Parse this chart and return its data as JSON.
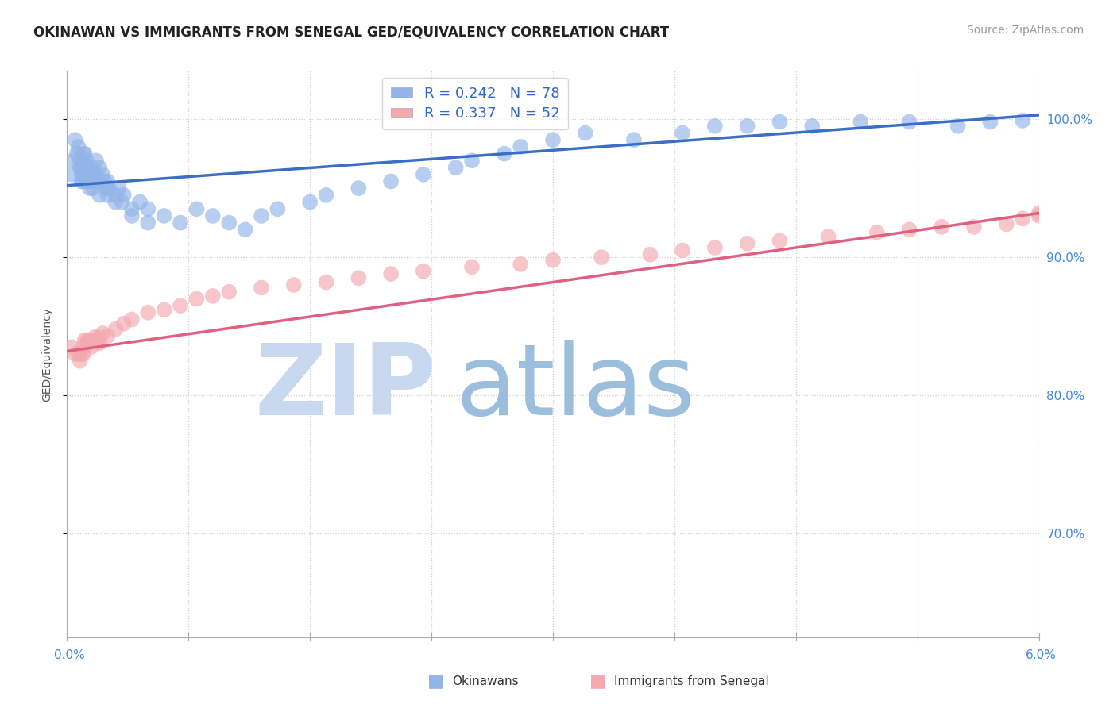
{
  "title": "OKINAWAN VS IMMIGRANTS FROM SENEGAL GED/EQUIVALENCY CORRELATION CHART",
  "source": "Source: ZipAtlas.com",
  "ylabel": "GED/Equivalency",
  "yticks": [
    "70.0%",
    "80.0%",
    "90.0%",
    "100.0%"
  ],
  "ytick_values": [
    0.7,
    0.8,
    0.9,
    1.0
  ],
  "xmin": 0.0,
  "xmax": 0.06,
  "ymin": 0.625,
  "ymax": 1.035,
  "R_blue": 0.242,
  "N_blue": 78,
  "R_pink": 0.337,
  "N_pink": 52,
  "blue_color": "#92b4e8",
  "pink_color": "#f4a8b0",
  "blue_line_color": "#3a6fc4",
  "pink_line_color": "#e06080",
  "watermark_zip": "ZIP",
  "watermark_atlas": "atlas",
  "watermark_color_zip": "#c8d8ee",
  "watermark_color_atlas": "#9bbedd",
  "background_color": "#ffffff",
  "title_fontsize": 12,
  "source_fontsize": 10,
  "tick_fontsize": 11,
  "blue_line_y0": 0.952,
  "blue_line_y1": 1.003,
  "pink_line_y0": 0.832,
  "pink_line_y1": 0.932,
  "blue_x": [
    0.0003,
    0.0004,
    0.0005,
    0.0006,
    0.0007,
    0.0008,
    0.0008,
    0.0009,
    0.0009,
    0.001,
    0.001,
    0.001,
    0.001,
    0.001,
    0.0011,
    0.0012,
    0.0012,
    0.0013,
    0.0013,
    0.0014,
    0.0014,
    0.0015,
    0.0015,
    0.0016,
    0.0016,
    0.0017,
    0.0018,
    0.0018,
    0.0019,
    0.002,
    0.002,
    0.002,
    0.0022,
    0.0023,
    0.0024,
    0.0025,
    0.0025,
    0.0026,
    0.003,
    0.003,
    0.0032,
    0.0034,
    0.0035,
    0.004,
    0.004,
    0.0045,
    0.005,
    0.005,
    0.006,
    0.007,
    0.008,
    0.009,
    0.01,
    0.011,
    0.012,
    0.013,
    0.015,
    0.016,
    0.018,
    0.02,
    0.022,
    0.024,
    0.025,
    0.027,
    0.028,
    0.03,
    0.032,
    0.035,
    0.038,
    0.04,
    0.042,
    0.044,
    0.046,
    0.049,
    0.052,
    0.055,
    0.057,
    0.059
  ],
  "blue_y": [
    0.96,
    0.97,
    0.985,
    0.975,
    0.98,
    0.97,
    0.965,
    0.96,
    0.955,
    0.975,
    0.97,
    0.965,
    0.96,
    0.955,
    0.975,
    0.97,
    0.96,
    0.965,
    0.955,
    0.96,
    0.95,
    0.965,
    0.955,
    0.96,
    0.95,
    0.955,
    0.97,
    0.96,
    0.955,
    0.965,
    0.955,
    0.945,
    0.96,
    0.955,
    0.95,
    0.945,
    0.955,
    0.95,
    0.945,
    0.94,
    0.95,
    0.94,
    0.945,
    0.935,
    0.93,
    0.94,
    0.935,
    0.925,
    0.93,
    0.925,
    0.935,
    0.93,
    0.925,
    0.92,
    0.93,
    0.935,
    0.94,
    0.945,
    0.95,
    0.955,
    0.96,
    0.965,
    0.97,
    0.975,
    0.98,
    0.985,
    0.99,
    0.985,
    0.99,
    0.995,
    0.995,
    0.998,
    0.995,
    0.998,
    0.998,
    0.995,
    0.998,
    0.999
  ],
  "pink_x": [
    0.0003,
    0.0005,
    0.0007,
    0.0008,
    0.0009,
    0.001,
    0.001,
    0.0011,
    0.0012,
    0.0013,
    0.0014,
    0.0015,
    0.0016,
    0.0017,
    0.0018,
    0.002,
    0.002,
    0.0022,
    0.0025,
    0.003,
    0.0035,
    0.004,
    0.005,
    0.006,
    0.007,
    0.008,
    0.009,
    0.01,
    0.012,
    0.014,
    0.016,
    0.018,
    0.02,
    0.022,
    0.025,
    0.028,
    0.03,
    0.033,
    0.036,
    0.038,
    0.04,
    0.042,
    0.044,
    0.047,
    0.05,
    0.052,
    0.054,
    0.056,
    0.058,
    0.059,
    0.06,
    0.06
  ],
  "pink_y": [
    0.835,
    0.83,
    0.83,
    0.825,
    0.83,
    0.83,
    0.835,
    0.84,
    0.838,
    0.84,
    0.838,
    0.835,
    0.84,
    0.842,
    0.84,
    0.838,
    0.842,
    0.845,
    0.843,
    0.848,
    0.852,
    0.855,
    0.86,
    0.862,
    0.865,
    0.87,
    0.872,
    0.875,
    0.878,
    0.88,
    0.882,
    0.885,
    0.888,
    0.89,
    0.893,
    0.895,
    0.898,
    0.9,
    0.902,
    0.905,
    0.907,
    0.91,
    0.912,
    0.915,
    0.918,
    0.92,
    0.922,
    0.922,
    0.924,
    0.928,
    0.93,
    0.932
  ]
}
